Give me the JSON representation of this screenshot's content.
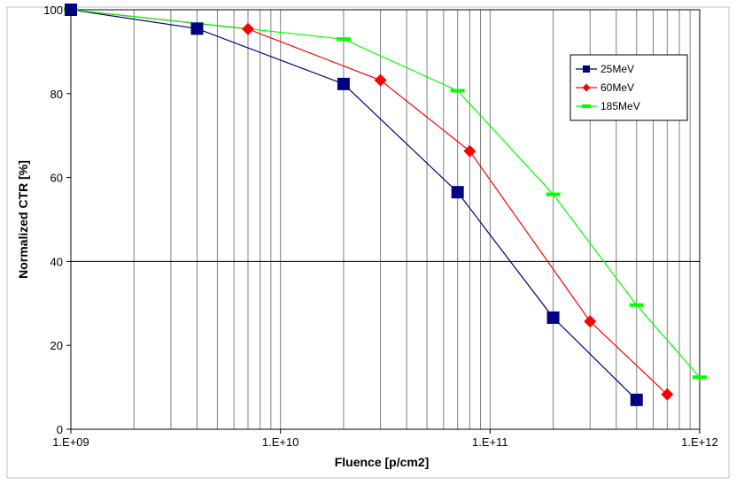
{
  "chart_data": {
    "type": "line",
    "title": "",
    "xlabel": "Fluence [p/cm2]",
    "ylabel": "Normalized CTR [%]",
    "x_scale": "log",
    "xlim": [
      1000000000,
      1000000000000
    ],
    "ylim": [
      0,
      100
    ],
    "x_tick_labels": [
      "1.E+09",
      "1.E+10",
      "1.E+11",
      "1.E+12"
    ],
    "y_tick_labels": [
      "0",
      "20",
      "40",
      "60",
      "80",
      "100"
    ],
    "grid": "vertical log gridlines; horizontal gridline at 40",
    "legend_placement": "top-right",
    "series": [
      {
        "name": "25MeV",
        "color": "#000080",
        "marker": "square",
        "x": [
          1000000000,
          4000000000,
          20000000000,
          70000000000,
          200000000000,
          500000000000
        ],
        "y": [
          100,
          95.5,
          82.3,
          56.5,
          26.6,
          7.0
        ]
      },
      {
        "name": "60MeV",
        "color": "#ff0000",
        "marker": "diamond",
        "x": [
          1000000000,
          7000000000,
          30000000000,
          80000000000,
          300000000000,
          700000000000
        ],
        "y": [
          100,
          95.4,
          83.2,
          66.3,
          25.7,
          8.3
        ]
      },
      {
        "name": "185MeV",
        "color": "#00ff00",
        "marker": "dash",
        "x": [
          1000000000,
          20000000000,
          70000000000,
          200000000000,
          500000000000,
          1000000000000
        ],
        "y": [
          100,
          93.0,
          80.7,
          56.0,
          29.6,
          12.4
        ]
      }
    ]
  }
}
